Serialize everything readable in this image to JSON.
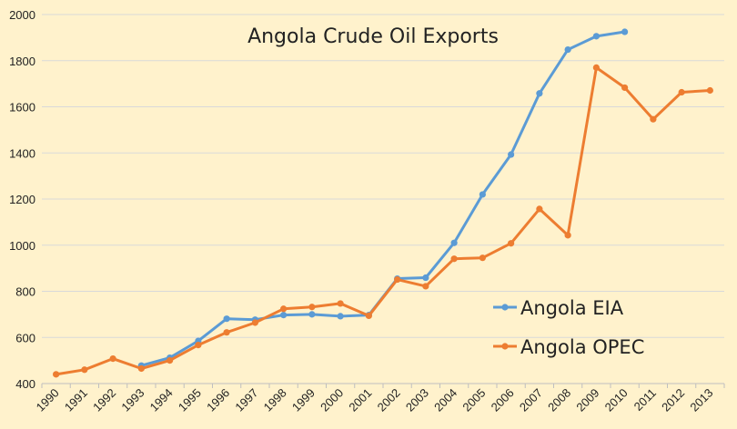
{
  "chart_data": {
    "type": "line",
    "title": "Angola Crude Oil Exports",
    "xlabel": "",
    "ylabel": "",
    "ylim": [
      400,
      2000
    ],
    "yticks": [
      400,
      600,
      800,
      1000,
      1200,
      1400,
      1600,
      1800,
      2000
    ],
    "grid": true,
    "legend_position": "bottom-right",
    "categories": [
      "1990",
      "1991",
      "1992",
      "1993",
      "1994",
      "1995",
      "1996",
      "1997",
      "1998",
      "1999",
      "2000",
      "2001",
      "2002",
      "2003",
      "2004",
      "2005",
      "2006",
      "2007",
      "2008",
      "2009",
      "2010",
      "2011",
      "2012",
      "2013"
    ],
    "series": [
      {
        "name": "Angola EIA",
        "color": "#5B9BD5",
        "values": [
          null,
          null,
          null,
          478,
          512,
          585,
          681,
          677,
          697,
          700,
          692,
          697,
          855,
          859,
          1010,
          1220,
          1393,
          1658,
          1848,
          1906,
          1925,
          null,
          null,
          null
        ]
      },
      {
        "name": "Angola OPEC",
        "color": "#ED7D31",
        "values": [
          440,
          460,
          508,
          465,
          500,
          567,
          622,
          664,
          724,
          732,
          747,
          694,
          851,
          822,
          941,
          945,
          1008,
          1157,
          1043,
          1770,
          1683,
          1546,
          1663,
          1671
        ]
      }
    ]
  }
}
